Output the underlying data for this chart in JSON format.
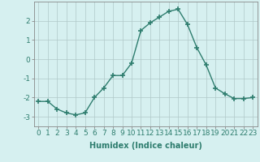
{
  "x": [
    0,
    1,
    2,
    3,
    4,
    5,
    6,
    7,
    8,
    9,
    10,
    11,
    12,
    13,
    14,
    15,
    16,
    17,
    18,
    19,
    20,
    21,
    22,
    23
  ],
  "y": [
    -2.2,
    -2.2,
    -2.6,
    -2.8,
    -2.9,
    -2.8,
    -2.0,
    -1.5,
    -0.85,
    -0.85,
    -0.2,
    1.5,
    1.9,
    2.2,
    2.5,
    2.6,
    1.8,
    0.6,
    -0.3,
    -1.5,
    -1.8,
    -2.05,
    -2.05,
    -2.0
  ],
  "line_color": "#2e7d6e",
  "marker": "+",
  "marker_size": 4,
  "bg_color": "#d6f0f0",
  "grid_color": "#b0c8c8",
  "xlabel": "Humidex (Indice chaleur)",
  "xlabel_fontsize": 7,
  "tick_fontsize": 6.5,
  "ylim": [
    -3.5,
    3.0
  ],
  "xlim": [
    -0.5,
    23.5
  ],
  "yticks": [
    -3,
    -2,
    -1,
    0,
    1,
    2
  ],
  "xticks": [
    0,
    1,
    2,
    3,
    4,
    5,
    6,
    7,
    8,
    9,
    10,
    11,
    12,
    13,
    14,
    15,
    16,
    17,
    18,
    19,
    20,
    21,
    22,
    23
  ]
}
